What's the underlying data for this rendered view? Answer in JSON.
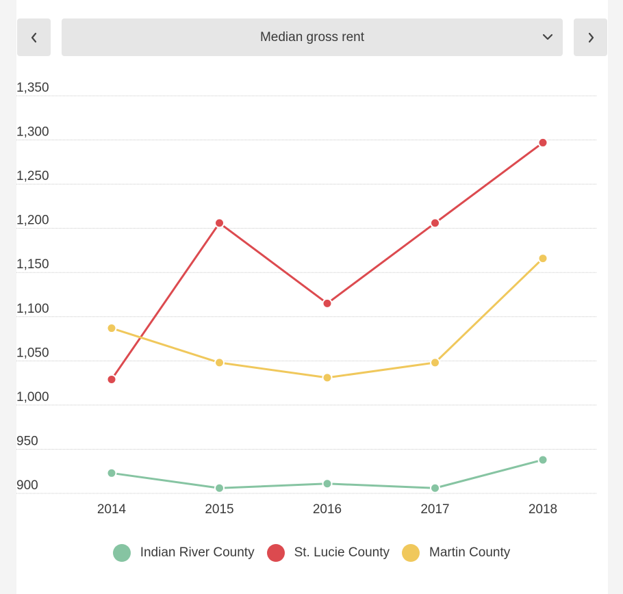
{
  "header": {
    "selector_label": "Median gross rent",
    "prev_icon": "chevron-left-icon",
    "next_icon": "chevron-right-icon",
    "dropdown_icon": "chevron-down-icon"
  },
  "chart_data": {
    "type": "line",
    "title": "",
    "xlabel": "",
    "ylabel": "",
    "categories": [
      "2014",
      "2015",
      "2016",
      "2017",
      "2018"
    ],
    "ylim": [
      900,
      1350
    ],
    "y_ticks": [
      900,
      950,
      1000,
      1050,
      1100,
      1150,
      1200,
      1250,
      1300,
      1350
    ],
    "y_tick_labels": [
      "900",
      "950",
      "1,000",
      "1,050",
      "1,100",
      "1,150",
      "1,200",
      "1,250",
      "1,300",
      "1,350"
    ],
    "grid": "horizontal",
    "legend_position": "bottom",
    "series": [
      {
        "name": "Indian River County",
        "color": "#86c4a2",
        "values": [
          923,
          906,
          911,
          906,
          938
        ]
      },
      {
        "name": "St. Lucie County",
        "color": "#dc4a4f",
        "values": [
          1029,
          1206,
          1115,
          1206,
          1297
        ]
      },
      {
        "name": "Martin County",
        "color": "#f0c85c",
        "values": [
          1087,
          1048,
          1031,
          1048,
          1166
        ]
      }
    ]
  }
}
